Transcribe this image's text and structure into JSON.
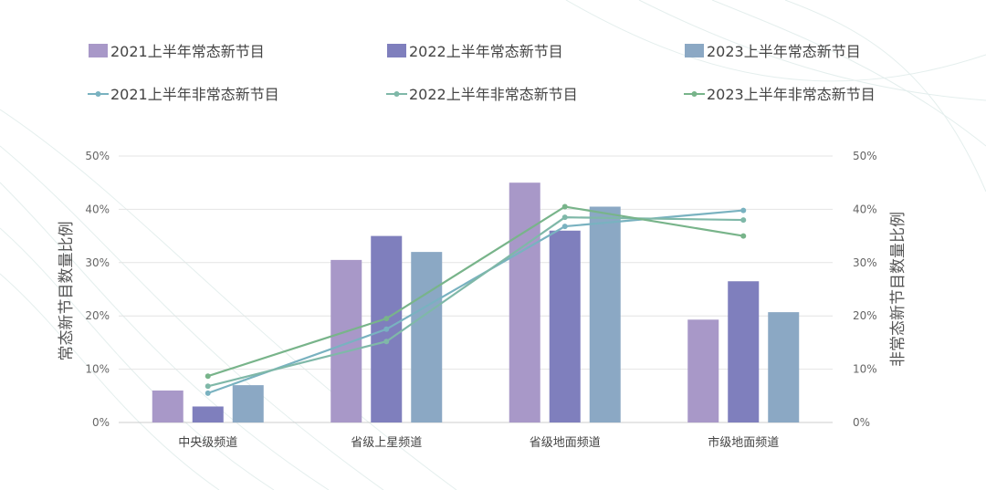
{
  "chart_data": {
    "type": "bar",
    "categories": [
      "中央级频道",
      "省级上星频道",
      "省级地面频道",
      "市级地面频道"
    ],
    "bar_series": [
      {
        "name": "2021上半年常态新节目",
        "color": "#a898c8",
        "values": [
          6,
          30.5,
          45,
          19.3
        ]
      },
      {
        "name": "2022上半年常态新节目",
        "color": "#7f7fbd",
        "values": [
          3,
          35,
          36,
          26.5
        ]
      },
      {
        "name": "2023上半年常态新节目",
        "color": "#8ba8c4",
        "values": [
          7,
          32,
          40.5,
          20.7
        ]
      }
    ],
    "line_series": [
      {
        "name": "2021上半年非常态新节目",
        "color": "#79b2c0",
        "values": [
          5.5,
          17.5,
          36.8,
          39.8
        ]
      },
      {
        "name": "2022上半年非常态新节目",
        "color": "#7fb8a8",
        "values": [
          6.8,
          15.2,
          38.5,
          38.0
        ]
      },
      {
        "name": "2023上半年非常态新节目",
        "color": "#78b48a",
        "values": [
          8.7,
          19.5,
          40.5,
          35.0
        ]
      }
    ],
    "ylabel_left": "常态新节目数量比例",
    "ylabel_right": "非常态新节目数量比例",
    "ylim": [
      0,
      50
    ],
    "yticks": [
      "0%",
      "10%",
      "20%",
      "30%",
      "40%",
      "50%"
    ],
    "grid": true,
    "legend_position": "top"
  }
}
